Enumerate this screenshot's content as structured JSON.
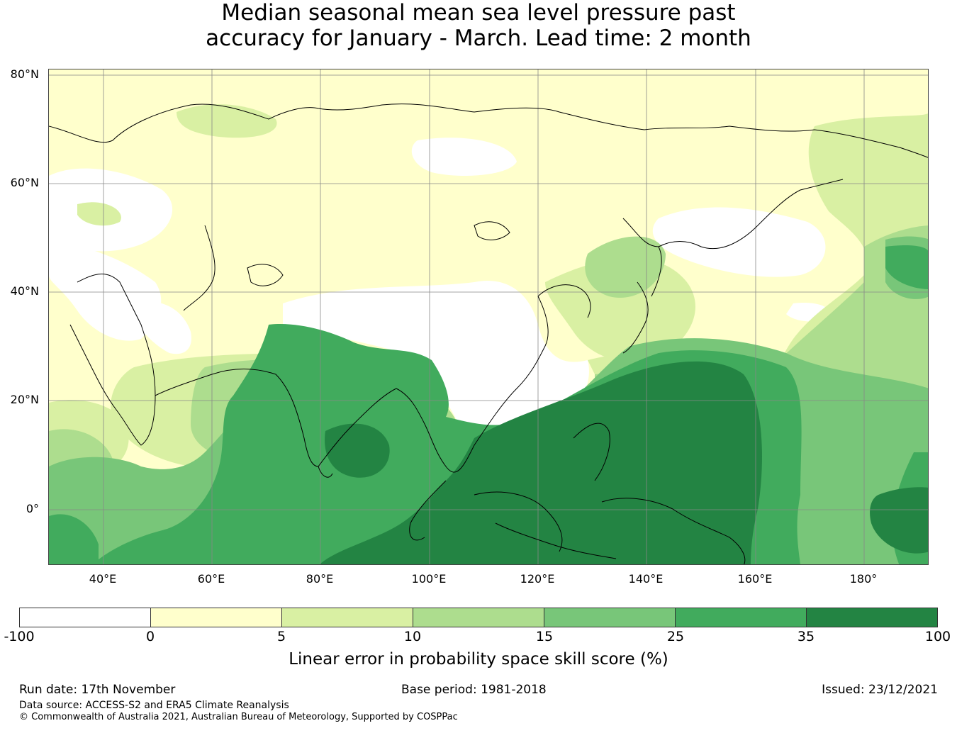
{
  "title": {
    "line1": "Median seasonal mean sea level pressure past",
    "line2": "accuracy for January - March. Lead time: 2 month"
  },
  "map": {
    "lat_labels": [
      "80°N",
      "60°N",
      "40°N",
      "20°N",
      "0°"
    ],
    "lon_labels": [
      "40°E",
      "60°E",
      "80°E",
      "100°E",
      "120°E",
      "140°E",
      "160°E",
      "180°"
    ],
    "extent": {
      "lon_min": 30,
      "lon_max": 192,
      "lat_min": -10,
      "lat_max": 81
    },
    "coastline_color": "#000000",
    "grid_color": "#888888"
  },
  "colorbar": {
    "ticks": [
      "-100",
      "0",
      "5",
      "10",
      "15",
      "25",
      "35",
      "100"
    ],
    "colors": [
      "#ffffff",
      "#ffffcc",
      "#d9f0a3",
      "#addd8e",
      "#78c679",
      "#41ab5d",
      "#238443"
    ],
    "label": "Linear error in probability space skill score (%)"
  },
  "footer": {
    "run_date": "Run date: 17th November",
    "base_period": "Base period: 1981-2018",
    "issued": "Issued: 23/12/2021",
    "data_source": "Data source: ACCESS-S2 and ERA5 Climate Reanalysis",
    "copyright": "© Commonwealth of Australia 2021, Australian Bureau of Meteorology, Supported by COSPPac"
  }
}
